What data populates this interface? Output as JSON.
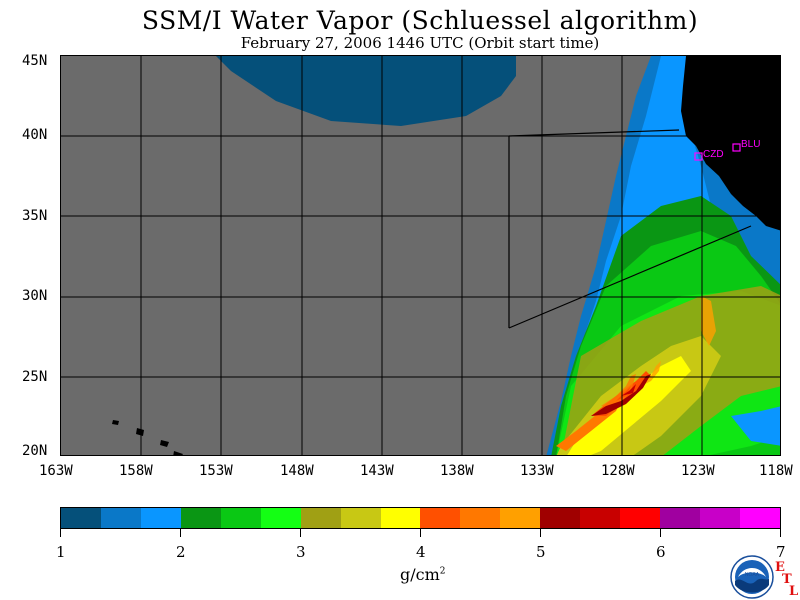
{
  "title": "SSM/I Water Vapor (Schluessel algorithm)",
  "subtitle": "February 27, 2006  1446 UTC  (Orbit start time)",
  "lat_labels": [
    "45N",
    "40N",
    "35N",
    "30N",
    "25N",
    "20N"
  ],
  "lon_labels": [
    "163W",
    "158W",
    "153W",
    "148W",
    "143W",
    "138W",
    "133W",
    "128W",
    "123W",
    "118W"
  ],
  "stations": [
    {
      "id": "CZD",
      "color": "#ff00ff"
    },
    {
      "id": "BLU",
      "color": "#ff00ff"
    }
  ],
  "colorbar": {
    "unit": "g/cm",
    "unit_exponent": "2",
    "tick_labels": [
      "1",
      "2",
      "3",
      "4",
      "5",
      "6",
      "7"
    ],
    "colors": [
      "#05507a",
      "#0a78c8",
      "#0a96ff",
      "#0a9614",
      "#0ac814",
      "#14ff14",
      "#a0a014",
      "#c8c814",
      "#ffff00",
      "#ff5000",
      "#ff7800",
      "#ffa000",
      "#a00000",
      "#c80000",
      "#ff0000",
      "#a000a0",
      "#c800c8",
      "#ff00ff"
    ]
  },
  "map_colors": {
    "no_data": "#6b6b6b",
    "land": "#000000"
  },
  "logo": {
    "name": "NOAA"
  },
  "etl_letters": [
    "E",
    "T",
    "L"
  ]
}
